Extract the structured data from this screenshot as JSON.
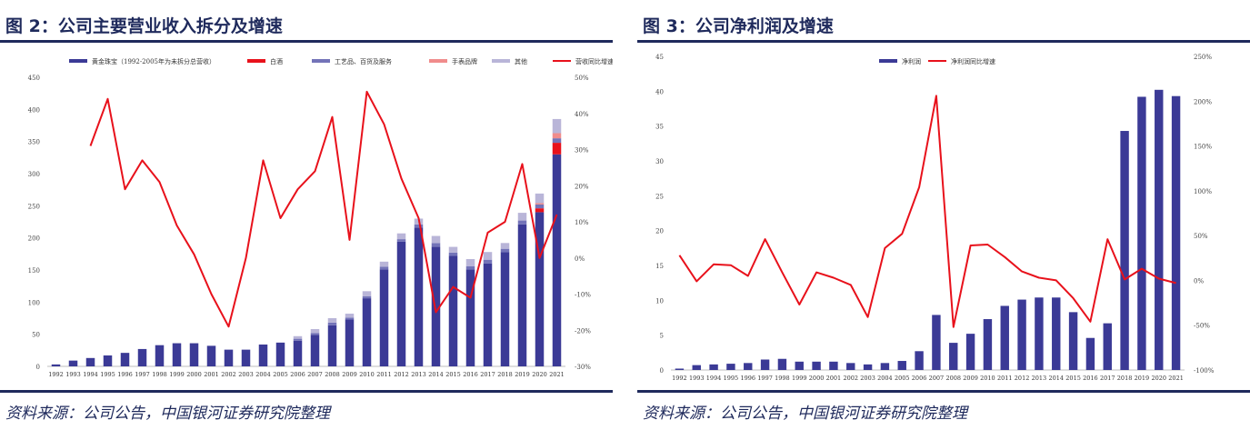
{
  "figures": [
    {
      "title": "图 2：公司主要营业收入拆分及增速",
      "source": "资料来源：公司公告，中国银河证券研究院整理"
    },
    {
      "title": "图 3：公司净利润及增速",
      "source": "资料来源：公司公告，中国银河证券研究院整理"
    }
  ],
  "colors": {
    "navy": "#1f2a5c",
    "bar_main": "#3b3a96",
    "bar_wine": "#e8111b",
    "bar_craft": "#7373b8",
    "bar_watch": "#f08c8c",
    "bar_other": "#b9b5d8",
    "line": "#e8111b"
  },
  "chart_data": [
    {
      "type": "bar",
      "stacked": true,
      "categories": [
        "1992",
        "1993",
        "1994",
        "1995",
        "1996",
        "1997",
        "1998",
        "1999",
        "2000",
        "2001",
        "2002",
        "2003",
        "2004",
        "2005",
        "2006",
        "2007",
        "2008",
        "2009",
        "2010",
        "2011",
        "2012",
        "2013",
        "2014",
        "2015",
        "2016",
        "2017",
        "2018",
        "2019",
        "2020",
        "2021"
      ],
      "series": [
        {
          "name": "黄金珠宝（1992-2005年为未拆分总营收）",
          "kind": "bar",
          "color": "#3b3a96",
          "values": [
            3,
            9,
            13,
            17,
            21,
            27,
            33,
            36,
            36,
            32,
            26,
            26,
            34,
            37,
            40,
            49,
            64,
            73,
            106,
            151,
            194,
            216,
            186,
            172,
            151,
            160,
            178,
            221,
            240,
            330
          ]
        },
        {
          "name": "白酒",
          "kind": "bar",
          "color": "#e8111b",
          "values": [
            0,
            0,
            0,
            0,
            0,
            0,
            0,
            0,
            0,
            0,
            0,
            0,
            0,
            0,
            0,
            0,
            0,
            0,
            0,
            0,
            0,
            0,
            0,
            0,
            0,
            0,
            0,
            0,
            6,
            18
          ]
        },
        {
          "name": "工艺品、百货及服务",
          "kind": "bar",
          "color": "#7373b8",
          "values": [
            0,
            0,
            0,
            0,
            0,
            0,
            0,
            0,
            0,
            0,
            0,
            0,
            0,
            0,
            3,
            3,
            4,
            3,
            3,
            4,
            4,
            5,
            6,
            5,
            5,
            6,
            5,
            6,
            6,
            7
          ]
        },
        {
          "name": "手表品牌",
          "kind": "bar",
          "color": "#f08c8c",
          "values": [
            0,
            0,
            0,
            0,
            0,
            0,
            0,
            0,
            0,
            0,
            0,
            0,
            0,
            0,
            0,
            0,
            0,
            0,
            0,
            0,
            0,
            0,
            0,
            0,
            0,
            0,
            0,
            0,
            2,
            8
          ]
        },
        {
          "name": "其他",
          "kind": "bar",
          "color": "#b9b5d8",
          "values": [
            0,
            0,
            0,
            0,
            0,
            0,
            0,
            0,
            0,
            0,
            0,
            0,
            0,
            0,
            4,
            6,
            7,
            6,
            8,
            8,
            9,
            9,
            11,
            9,
            11,
            12,
            9,
            12,
            15,
            22
          ]
        },
        {
          "name": "营收同比增速",
          "kind": "line",
          "axis": "right",
          "color": "#e8111b",
          "values": [
            null,
            null,
            31,
            44,
            19,
            27,
            21,
            9,
            1,
            -10,
            -19,
            0,
            27,
            11,
            19,
            24,
            39,
            5,
            46,
            37,
            22,
            11,
            -15,
            -8,
            -11,
            7,
            10,
            26,
            0,
            12
          ]
        }
      ],
      "ylim": [
        0,
        450
      ],
      "yticks": [
        0,
        50,
        100,
        150,
        200,
        250,
        300,
        350,
        400,
        450
      ],
      "y2lim": [
        -30,
        50
      ],
      "y2ticks": [
        "-30%",
        "-20%",
        "-10%",
        "0%",
        "10%",
        "20%",
        "30%",
        "40%",
        "50%"
      ],
      "legend_position": "top"
    },
    {
      "type": "bar",
      "categories": [
        "1992",
        "1993",
        "1994",
        "1995",
        "1996",
        "1997",
        "1998",
        "1999",
        "2000",
        "2001",
        "2002",
        "2003",
        "2004",
        "2005",
        "2006",
        "2007",
        "2008",
        "2009",
        "2010",
        "2011",
        "2012",
        "2013",
        "2014",
        "2015",
        "2016",
        "2017",
        "2018",
        "2019",
        "2020",
        "2021"
      ],
      "series": [
        {
          "name": "净利润",
          "kind": "bar",
          "color": "#3b3a96",
          "values": [
            0.2,
            0.7,
            0.8,
            0.9,
            1.0,
            1.5,
            1.6,
            1.2,
            1.2,
            1.2,
            1.0,
            0.8,
            1.0,
            1.3,
            2.7,
            7.9,
            3.9,
            5.2,
            7.3,
            9.2,
            10.1,
            10.4,
            10.4,
            8.3,
            4.6,
            6.7,
            34.3,
            39.2,
            40.2,
            39.3
          ]
        },
        {
          "name": "净利润同比增速",
          "kind": "line",
          "axis": "right",
          "color": "#e8111b",
          "values": [
            28,
            -1,
            18,
            17,
            5,
            46,
            9,
            -27,
            9,
            3,
            -5,
            -41,
            36,
            52,
            104,
            206,
            -52,
            39,
            40,
            26,
            10,
            3,
            0,
            -20,
            -46,
            46,
            1,
            13,
            2,
            -3
          ]
        }
      ],
      "ylim": [
        0,
        45
      ],
      "yticks": [
        0,
        5,
        10,
        15,
        20,
        25,
        30,
        35,
        40,
        45
      ],
      "y2lim": [
        -100,
        250
      ],
      "y2ticks": [
        "-100%",
        "-50%",
        "0%",
        "50%",
        "100%",
        "150%",
        "200%",
        "250%"
      ],
      "legend_position": "top"
    }
  ]
}
